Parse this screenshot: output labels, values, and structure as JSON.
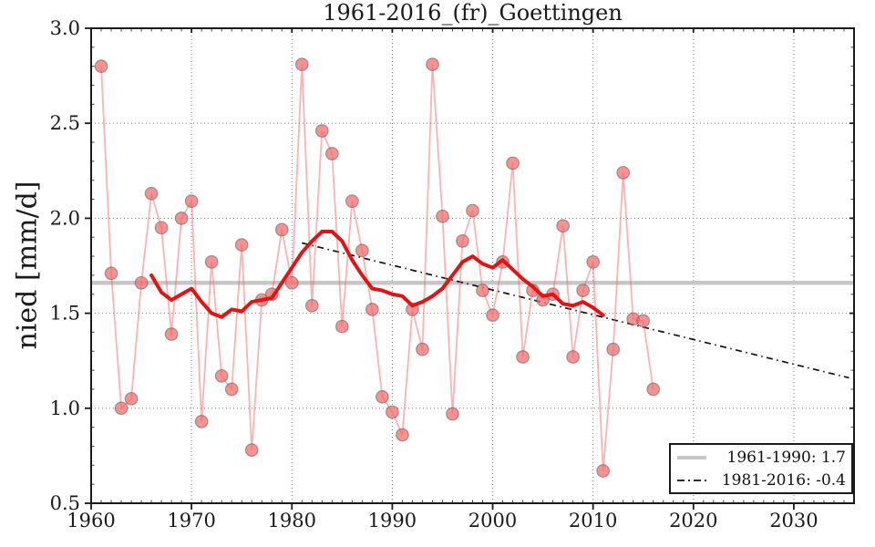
{
  "chart_data": {
    "type": "line",
    "title": "1961-2016_(fr)_Goettingen",
    "ylabel": "nied [mm/d]",
    "xlabel": "",
    "xlim": [
      1960,
      2036
    ],
    "ylim": [
      0.5,
      3.0
    ],
    "xticks": [
      1960,
      1970,
      1980,
      1990,
      2000,
      2010,
      2020,
      2030
    ],
    "yticks": [
      0.5,
      1.0,
      1.5,
      2.0,
      2.5,
      3.0
    ],
    "grid": true,
    "legend_position": "lower right",
    "colors": {
      "annual_line": "rgba(242,106,106,0.5)",
      "marker_fill": "rgba(241,110,110,0.75)",
      "marker_edge": "rgba(70,70,70,0.45)",
      "running_mean": "#e01414",
      "mean_line": "#c7c7c7",
      "trend_line": "#111111",
      "grid_line": "#8a8a8a"
    },
    "series": [
      {
        "name": "annual",
        "type": "line+markers",
        "x": [
          1961,
          1962,
          1963,
          1964,
          1965,
          1966,
          1967,
          1968,
          1969,
          1970,
          1971,
          1972,
          1973,
          1974,
          1975,
          1976,
          1977,
          1978,
          1979,
          1980,
          1981,
          1982,
          1983,
          1984,
          1985,
          1986,
          1987,
          1988,
          1989,
          1990,
          1991,
          1992,
          1993,
          1994,
          1995,
          1996,
          1997,
          1998,
          1999,
          2000,
          2001,
          2002,
          2003,
          2004,
          2005,
          2006,
          2007,
          2008,
          2009,
          2010,
          2011,
          2012,
          2013,
          2014,
          2015,
          2016
        ],
        "values": [
          2.8,
          1.71,
          1.0,
          1.05,
          1.66,
          2.13,
          1.95,
          1.39,
          2.0,
          2.09,
          0.93,
          1.77,
          1.17,
          1.1,
          1.86,
          0.78,
          1.57,
          1.6,
          1.94,
          1.66,
          2.81,
          1.54,
          2.46,
          2.34,
          1.43,
          2.09,
          1.83,
          1.52,
          1.06,
          0.98,
          0.86,
          1.52,
          1.31,
          2.81,
          2.01,
          0.97,
          1.88,
          2.04,
          1.62,
          1.49,
          1.77,
          2.29,
          1.27,
          1.62,
          1.57,
          1.6,
          1.96,
          1.27,
          1.62,
          1.77,
          0.67,
          1.31,
          2.24,
          1.47,
          1.46,
          1.1
        ]
      },
      {
        "name": "running-mean-11yr",
        "type": "line",
        "x": [
          1966,
          1967,
          1968,
          1969,
          1970,
          1971,
          1972,
          1973,
          1974,
          1975,
          1976,
          1977,
          1978,
          1979,
          1980,
          1981,
          1982,
          1983,
          1984,
          1985,
          1986,
          1987,
          1988,
          1989,
          1990,
          1991,
          1992,
          1993,
          1994,
          1995,
          1996,
          1997,
          1998,
          1999,
          2000,
          2001,
          2002,
          2003,
          2004,
          2005,
          2006,
          2007,
          2008,
          2009,
          2010,
          2011
        ],
        "values": [
          1.7,
          1.61,
          1.57,
          1.6,
          1.63,
          1.56,
          1.5,
          1.48,
          1.52,
          1.51,
          1.56,
          1.57,
          1.58,
          1.66,
          1.74,
          1.82,
          1.88,
          1.93,
          1.93,
          1.88,
          1.78,
          1.7,
          1.63,
          1.62,
          1.6,
          1.59,
          1.54,
          1.56,
          1.59,
          1.63,
          1.7,
          1.77,
          1.8,
          1.76,
          1.74,
          1.78,
          1.73,
          1.68,
          1.64,
          1.59,
          1.6,
          1.55,
          1.54,
          1.56,
          1.53,
          1.49
        ]
      },
      {
        "name": "mean-1961-1990",
        "type": "hline",
        "value": 1.66,
        "label": "1961-1990: 1.7"
      },
      {
        "name": "trend-1981-2016",
        "type": "trend",
        "x": [
          1981,
          2035.5
        ],
        "values": [
          1.87,
          1.16
        ],
        "label": "1981-2016: -0.4"
      }
    ],
    "legend": [
      {
        "label": "1961-1990: 1.7",
        "style": "solid-gray"
      },
      {
        "label": "1981-2016: -0.4",
        "style": "dashdot-black"
      }
    ]
  }
}
